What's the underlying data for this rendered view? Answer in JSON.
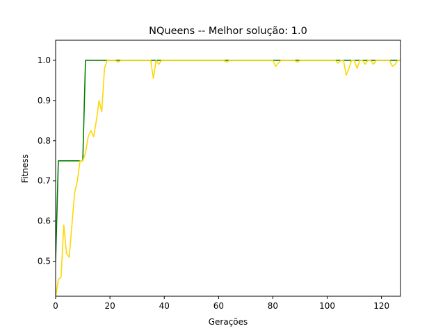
{
  "chart_data": {
    "type": "line",
    "title": "NQueens -- Melhor solução: 1.0",
    "xlabel": "Gerações",
    "ylabel": "Fitness",
    "xlim": [
      0,
      127
    ],
    "ylim": [
      0.413,
      1.05
    ],
    "xticks": [
      0,
      20,
      40,
      60,
      80,
      100,
      120
    ],
    "yticks": [
      0.5,
      0.6,
      0.7,
      0.8,
      0.9,
      1.0
    ],
    "xtick_labels": [
      "0",
      "20",
      "40",
      "60",
      "80",
      "100",
      "120"
    ],
    "ytick_labels": [
      "0.5",
      "0.6",
      "0.7",
      "0.8",
      "0.9",
      "1.0"
    ],
    "grid": false,
    "series": [
      {
        "color": "#008000",
        "points": [
          [
            0,
            0.5
          ],
          [
            1,
            0.75
          ],
          [
            10,
            0.75
          ],
          [
            11,
            1.0
          ],
          [
            127,
            1.0
          ]
        ]
      },
      {
        "color": "#ffd700",
        "points": [
          [
            0,
            0.41
          ],
          [
            1,
            0.455
          ],
          [
            2,
            0.46
          ],
          [
            3,
            0.59
          ],
          [
            4,
            0.52
          ],
          [
            5,
            0.51
          ],
          [
            6,
            0.59
          ],
          [
            7,
            0.67
          ],
          [
            8,
            0.7
          ],
          [
            9,
            0.75
          ],
          [
            10,
            0.75
          ],
          [
            11,
            0.77
          ],
          [
            12,
            0.81
          ],
          [
            13,
            0.825
          ],
          [
            14,
            0.81
          ],
          [
            15,
            0.85
          ],
          [
            16,
            0.9
          ],
          [
            17,
            0.872
          ],
          [
            18,
            0.98
          ],
          [
            19,
            1.0
          ],
          [
            22,
            1.0
          ],
          [
            23,
            0.995
          ],
          [
            24,
            1.0
          ],
          [
            34,
            1.0
          ],
          [
            35,
            1.0
          ],
          [
            36,
            0.955
          ],
          [
            37,
            1.0
          ],
          [
            38,
            0.99
          ],
          [
            39,
            1.0
          ],
          [
            62,
            1.0
          ],
          [
            63,
            0.995
          ],
          [
            64,
            1.0
          ],
          [
            80,
            1.0
          ],
          [
            81,
            0.985
          ],
          [
            82,
            0.993
          ],
          [
            83,
            1.0
          ],
          [
            88,
            1.0
          ],
          [
            89,
            0.995
          ],
          [
            90,
            1.0
          ],
          [
            103,
            1.0
          ],
          [
            104,
            0.993
          ],
          [
            105,
            1.0
          ],
          [
            106,
            1.0
          ],
          [
            107,
            0.963
          ],
          [
            108,
            0.98
          ],
          [
            109,
            1.0
          ],
          [
            110,
            1.0
          ],
          [
            111,
            0.98
          ],
          [
            112,
            1.0
          ],
          [
            113,
            1.0
          ],
          [
            114,
            0.99
          ],
          [
            115,
            1.0
          ],
          [
            116,
            1.0
          ],
          [
            117,
            0.99
          ],
          [
            118,
            1.0
          ],
          [
            123,
            1.0
          ],
          [
            124,
            0.985
          ],
          [
            125,
            0.99
          ],
          [
            126,
            1.0
          ],
          [
            127,
            1.0
          ]
        ]
      }
    ]
  }
}
